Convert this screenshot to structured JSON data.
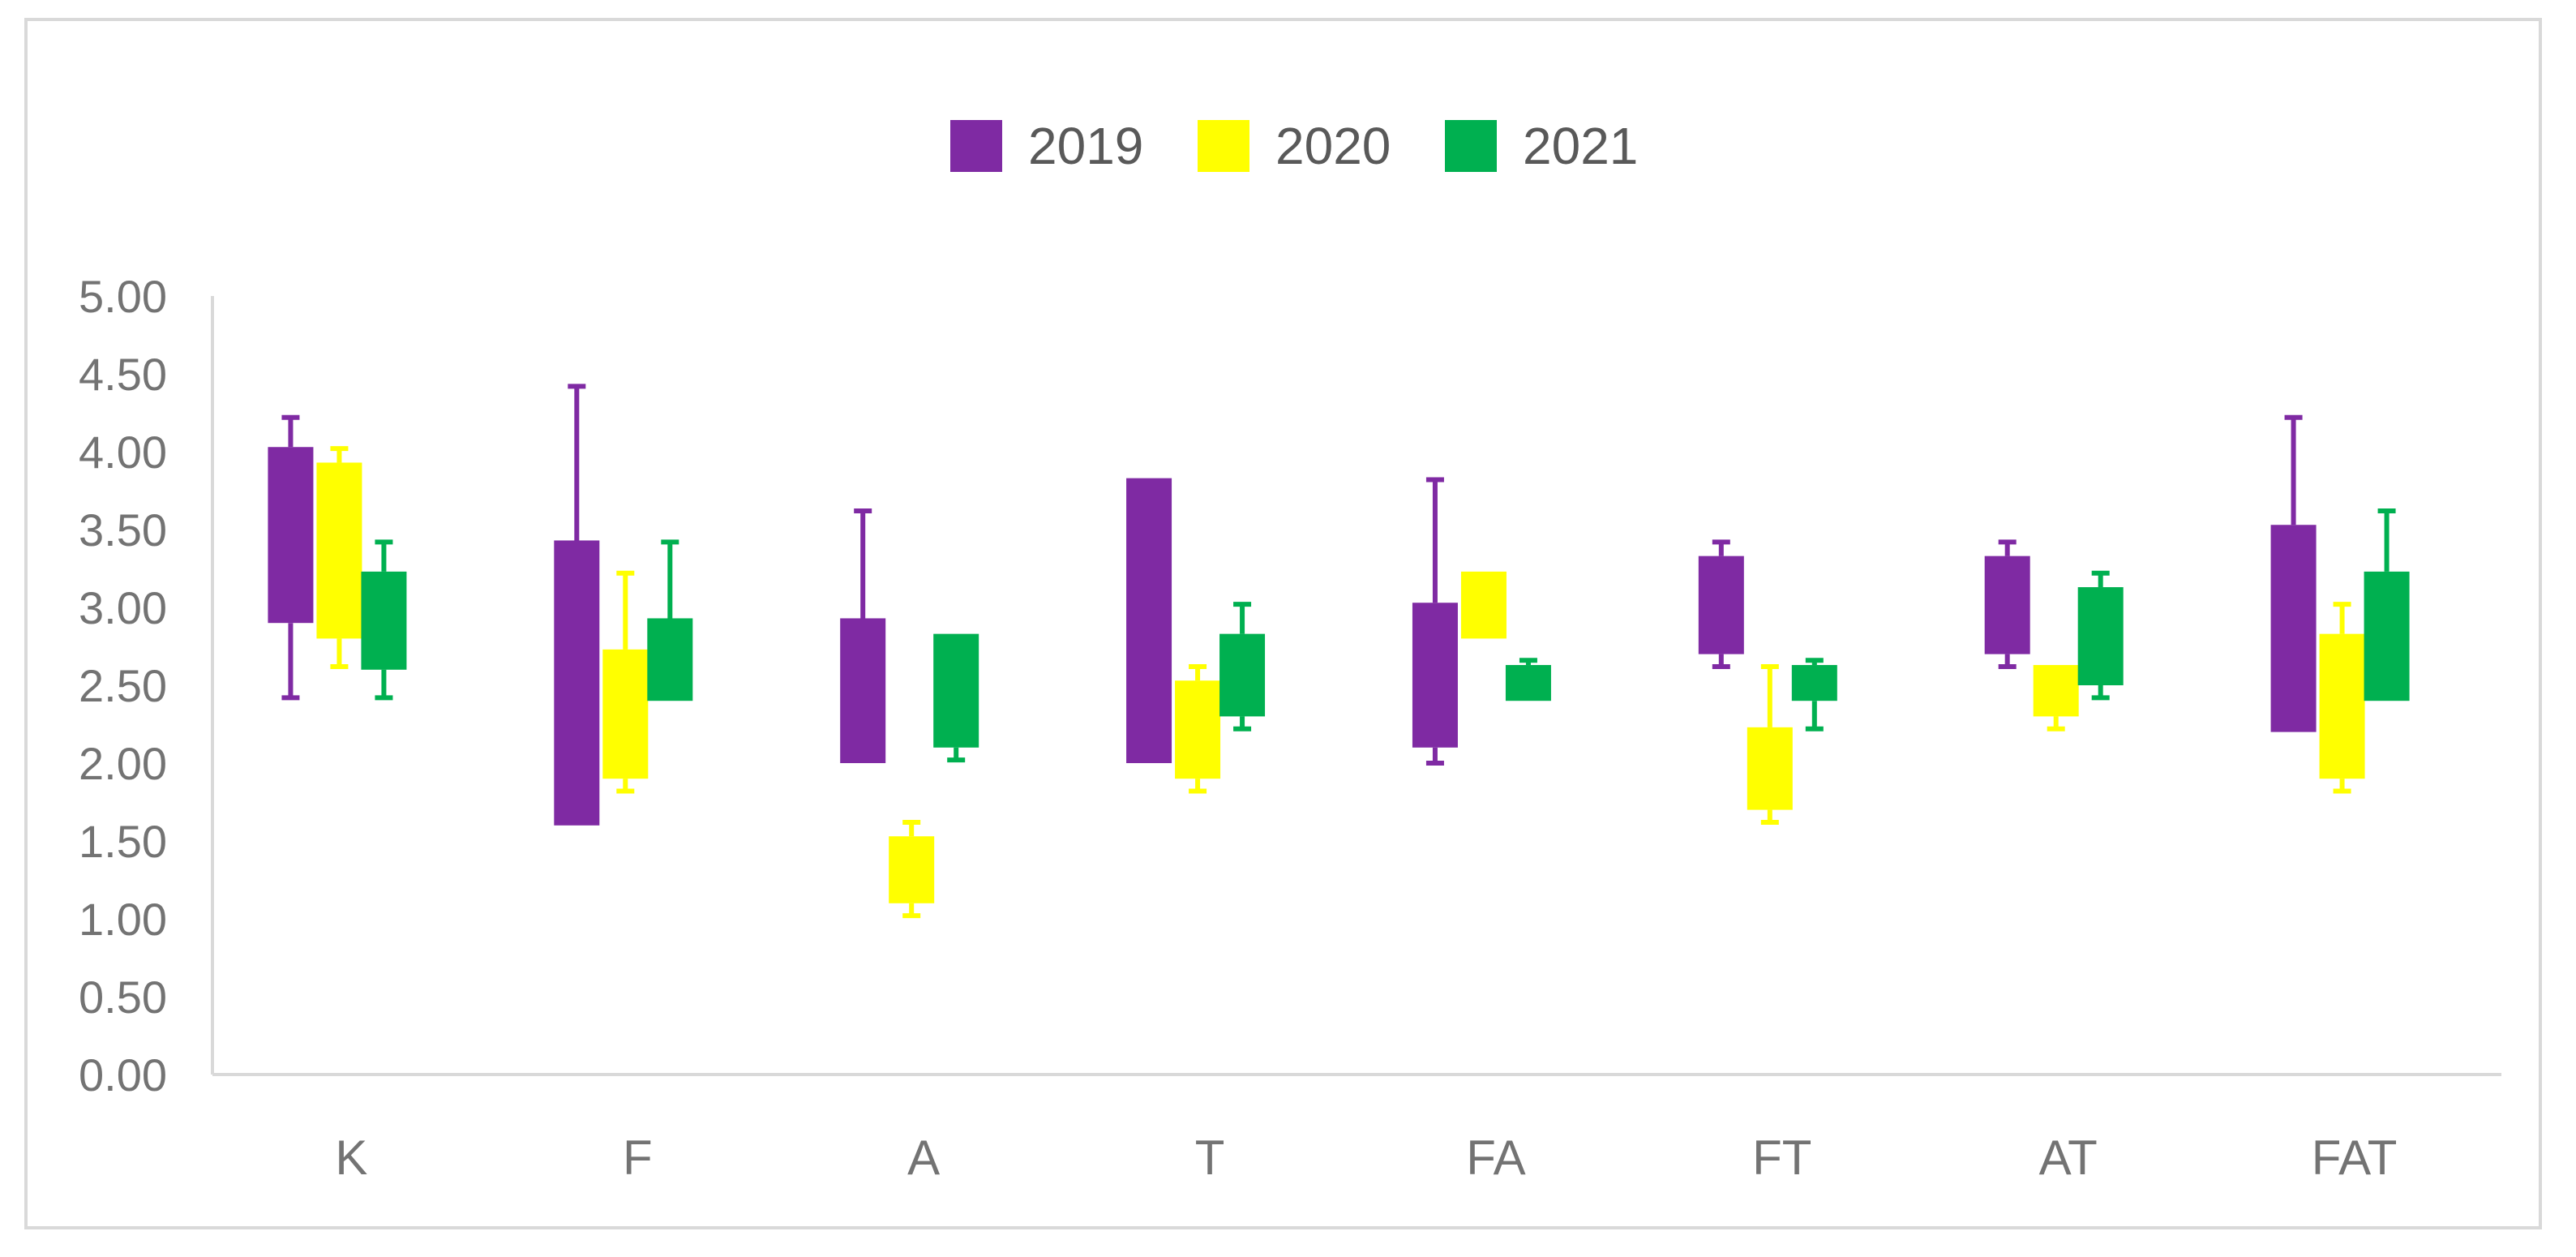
{
  "chart_data": {
    "type": "bar",
    "subtype": "floating-range-with-error-bars",
    "categories": [
      "K",
      "F",
      "A",
      "T",
      "FA",
      "FT",
      "AT",
      "FAT"
    ],
    "ylim": [
      0,
      5
    ],
    "ytick_step": 0.5,
    "ytick_labels": [
      "0.00",
      "0.50",
      "1.00",
      "1.50",
      "2.00",
      "2.50",
      "3.00",
      "3.50",
      "4.00",
      "4.50",
      "5.00"
    ],
    "legend_position": "top",
    "series": [
      {
        "name": "2019",
        "color": "#7f2aa3",
        "low": [
          2.9,
          1.6,
          2.0,
          2.0,
          2.1,
          2.7,
          2.7,
          2.2
        ],
        "high": [
          4.03,
          3.43,
          2.93,
          3.83,
          3.03,
          3.33,
          3.33,
          3.53
        ],
        "whisker_low": [
          2.42,
          null,
          null,
          null,
          2.0,
          2.62,
          2.62,
          null
        ],
        "whisker_high": [
          4.22,
          4.42,
          3.62,
          null,
          3.82,
          3.42,
          3.42,
          4.22
        ]
      },
      {
        "name": "2020",
        "color": "#ffff00",
        "low": [
          2.8,
          1.9,
          1.1,
          1.9,
          2.8,
          1.7,
          2.3,
          1.9
        ],
        "high": [
          3.93,
          2.73,
          1.53,
          2.53,
          3.23,
          2.23,
          2.63,
          2.83
        ],
        "whisker_low": [
          2.62,
          1.82,
          1.02,
          1.82,
          null,
          1.62,
          2.22,
          1.82
        ],
        "whisker_high": [
          4.02,
          3.22,
          1.62,
          2.62,
          null,
          2.62,
          null,
          3.02
        ]
      },
      {
        "name": "2021",
        "color": "#00b050",
        "low": [
          2.6,
          2.4,
          2.1,
          2.3,
          2.4,
          2.4,
          2.5,
          2.4
        ],
        "high": [
          3.23,
          2.93,
          2.83,
          2.83,
          2.63,
          2.63,
          3.13,
          3.23
        ],
        "whisker_low": [
          2.42,
          null,
          2.02,
          2.22,
          null,
          2.22,
          2.42,
          null
        ],
        "whisker_high": [
          3.42,
          3.42,
          null,
          3.02,
          2.66,
          2.66,
          3.22,
          3.62
        ]
      }
    ]
  }
}
